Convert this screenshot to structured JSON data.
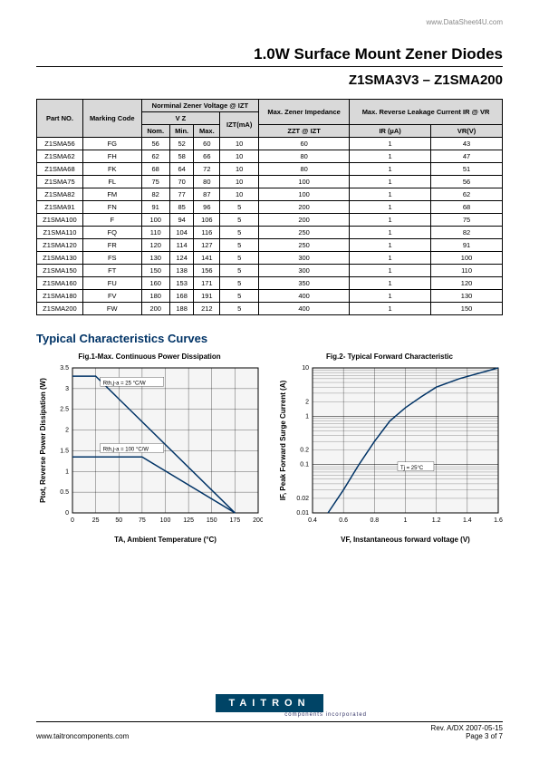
{
  "header": {
    "url": "www.DataSheet4U.com",
    "title": "1.0W Surface Mount Zener Diodes",
    "subtitle": "Z1SMA3V3 – Z1SMA200"
  },
  "table": {
    "header": {
      "part_no": "Part NO.",
      "marking": "Marking Code",
      "norm_voltage": "Norminal Zener Voltage @ IZT",
      "vz": "V Z",
      "nom": "Nom.",
      "min": "Min.",
      "max": "Max.",
      "izt": "IZT(mA)",
      "impedance": "Max. Zener Impedance",
      "zzt": "ZZT @ IZT",
      "leakage": "Max. Reverse Leakage Current IR @ VR",
      "ir": "IR (µA)",
      "vr": "VR(V)"
    },
    "rows": [
      {
        "part": "Z1SMA56",
        "code": "FG",
        "nom": "56",
        "min": "52",
        "max": "60",
        "izt": "10",
        "zzt": "60",
        "ir": "1",
        "vr": "43"
      },
      {
        "part": "Z1SMA62",
        "code": "FH",
        "nom": "62",
        "min": "58",
        "max": "66",
        "izt": "10",
        "zzt": "80",
        "ir": "1",
        "vr": "47"
      },
      {
        "part": "Z1SMA68",
        "code": "FK",
        "nom": "68",
        "min": "64",
        "max": "72",
        "izt": "10",
        "zzt": "80",
        "ir": "1",
        "vr": "51"
      },
      {
        "part": "Z1SMA75",
        "code": "FL",
        "nom": "75",
        "min": "70",
        "max": "80",
        "izt": "10",
        "zzt": "100",
        "ir": "1",
        "vr": "56"
      },
      {
        "part": "Z1SMA82",
        "code": "FM",
        "nom": "82",
        "min": "77",
        "max": "87",
        "izt": "10",
        "zzt": "100",
        "ir": "1",
        "vr": "62"
      },
      {
        "part": "Z1SMA91",
        "code": "FN",
        "nom": "91",
        "min": "85",
        "max": "96",
        "izt": "5",
        "zzt": "200",
        "ir": "1",
        "vr": "68"
      },
      {
        "part": "Z1SMA100",
        "code": "F",
        "nom": "100",
        "min": "94",
        "max": "106",
        "izt": "5",
        "zzt": "200",
        "ir": "1",
        "vr": "75"
      },
      {
        "part": "Z1SMA110",
        "code": "FQ",
        "nom": "110",
        "min": "104",
        "max": "116",
        "izt": "5",
        "zzt": "250",
        "ir": "1",
        "vr": "82"
      },
      {
        "part": "Z1SMA120",
        "code": "FR",
        "nom": "120",
        "min": "114",
        "max": "127",
        "izt": "5",
        "zzt": "250",
        "ir": "1",
        "vr": "91"
      },
      {
        "part": "Z1SMA130",
        "code": "FS",
        "nom": "130",
        "min": "124",
        "max": "141",
        "izt": "5",
        "zzt": "300",
        "ir": "1",
        "vr": "100"
      },
      {
        "part": "Z1SMA150",
        "code": "FT",
        "nom": "150",
        "min": "138",
        "max": "156",
        "izt": "5",
        "zzt": "300",
        "ir": "1",
        "vr": "110"
      },
      {
        "part": "Z1SMA160",
        "code": "FU",
        "nom": "160",
        "min": "153",
        "max": "171",
        "izt": "5",
        "zzt": "350",
        "ir": "1",
        "vr": "120"
      },
      {
        "part": "Z1SMA180",
        "code": "FV",
        "nom": "180",
        "min": "168",
        "max": "191",
        "izt": "5",
        "zzt": "400",
        "ir": "1",
        "vr": "130"
      },
      {
        "part": "Z1SMA200",
        "code": "FW",
        "nom": "200",
        "min": "188",
        "max": "212",
        "izt": "5",
        "zzt": "400",
        "ir": "1",
        "vr": "150"
      }
    ]
  },
  "section_title": "Typical Characteristics Curves",
  "chart1": {
    "title": "Fig.1-Max. Continuous Power Dissipation",
    "xlabel": "TA, Ambient Temperature (°C)",
    "ylabel": "Ptot, Reverse Power Dissipation (W)",
    "xlim": [
      0,
      200
    ],
    "ylim": [
      0,
      3.5
    ],
    "xticks": [
      0,
      25,
      50,
      75,
      100,
      125,
      150,
      175,
      200
    ],
    "yticks": [
      0,
      0.5,
      1,
      1.5,
      2,
      2.5,
      3,
      3.5
    ],
    "bg_color": "#f5f5f5",
    "grid_color": "#000000",
    "line_color": "#003366",
    "series": [
      {
        "label": "Rth,j-a = 25 °C/W",
        "points": [
          [
            0,
            3.3
          ],
          [
            25,
            3.3
          ],
          [
            175,
            0
          ]
        ]
      },
      {
        "label": "Rth,j-a = 100 °C/W",
        "points": [
          [
            0,
            1.35
          ],
          [
            75,
            1.35
          ],
          [
            175,
            0
          ]
        ]
      }
    ]
  },
  "chart2": {
    "title": "Fig.2- Typical Forward Characteristic",
    "xlabel": "VF, Instantaneous forward voltage (V)",
    "ylabel": "IF, Peak Forward Surge Current (A)",
    "xlim": [
      0.4,
      1.6
    ],
    "ylim": [
      0.01,
      10
    ],
    "xticks": [
      0.4,
      0.6,
      0.8,
      1,
      1.2,
      1.4,
      1.6
    ],
    "yticks": [
      0.01,
      0.02,
      0.1,
      0.2,
      1,
      2,
      10
    ],
    "bg_color": "#f5f5f5",
    "grid_color": "#000000",
    "line_color": "#003366",
    "note": "Tj = 25°C"
  },
  "footer": {
    "logo_text": "TAITRON",
    "logo_sub": "components incorporated",
    "url": "www.taitroncomponents.com",
    "rev": "Rev. A/DX 2007-05-15",
    "page": "Page 3 of 7"
  }
}
